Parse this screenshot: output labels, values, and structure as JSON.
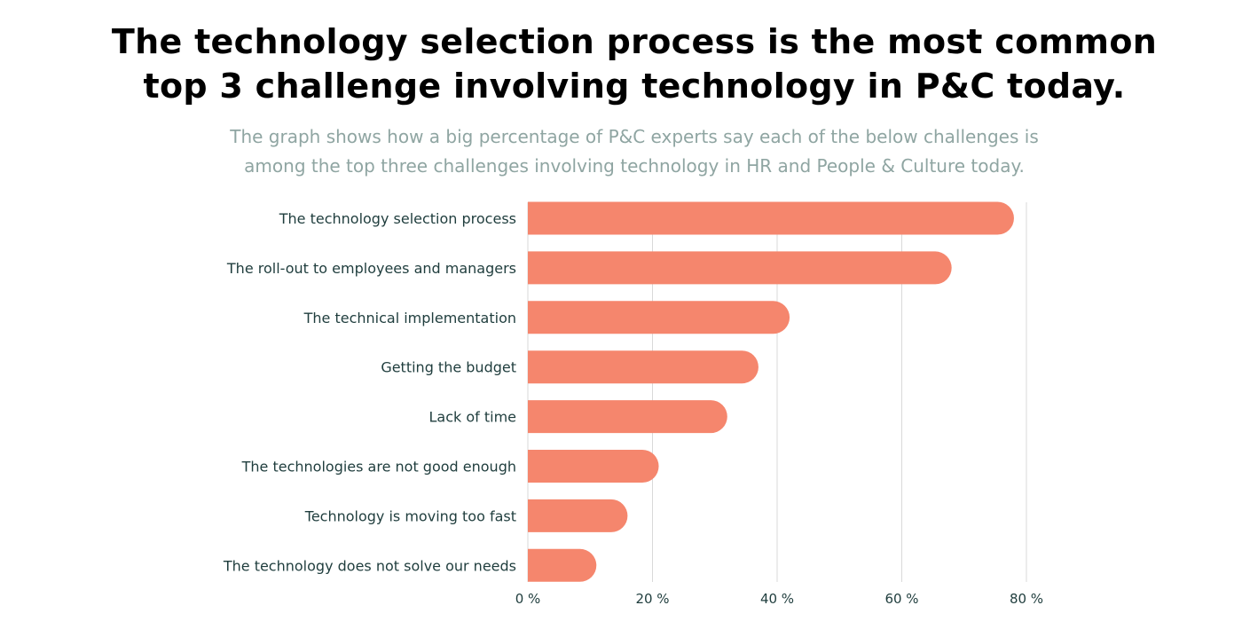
{
  "header": {
    "title_line1": "The technology selection process is the most common",
    "title_line2": "top 3 challenge involving technology in P&C today.",
    "subtitle_line1": "The graph shows how a big percentage of P&C experts say each of the below challenges is",
    "subtitle_line2": "among the top three challenges involving technology in HR and People & Culture today."
  },
  "chart_data": {
    "type": "bar",
    "orientation": "horizontal",
    "categories": [
      "The technology selection process",
      "The roll-out to employees and managers",
      "The technical implementation",
      "Getting the budget",
      "Lack of time",
      "The technologies are not good enough",
      "Technology is moving too fast",
      "The technology does not solve our needs"
    ],
    "values": [
      78,
      68,
      42,
      37,
      32,
      21,
      16,
      11
    ],
    "xlim": [
      0,
      80
    ],
    "xticks": [
      0,
      20,
      40,
      60,
      80
    ],
    "xtick_labels": [
      "0 %",
      "20 %",
      "40 %",
      "60 %",
      "80 %"
    ],
    "unit": "%",
    "grid": true,
    "bar_color": "#f5866d",
    "grid_color": "#d9d9d9",
    "label_color": "#1f3d3d"
  }
}
